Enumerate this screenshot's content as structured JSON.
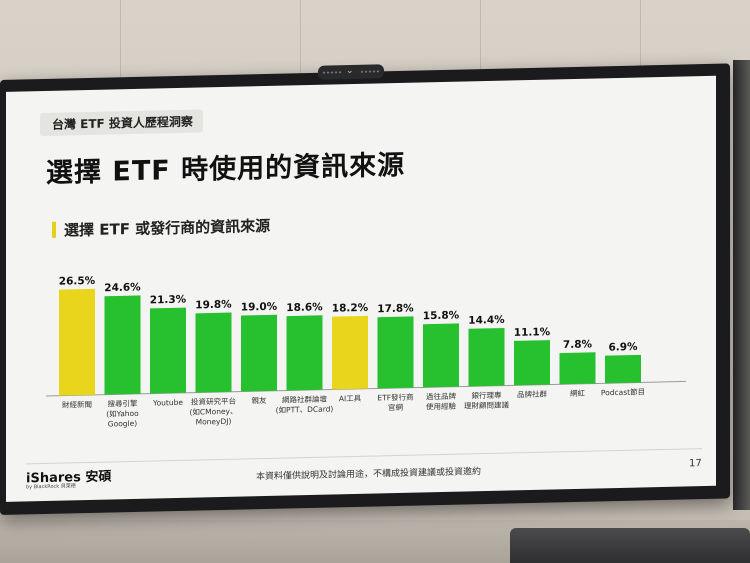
{
  "slide": {
    "topic_tag": "台灣 ETF 投資人歷程洞察",
    "title": "選擇 ETF 時使用的資訊來源",
    "subtitle": "選擇 ETF 或發行商的資訊來源",
    "footer_logo": "iShares 安碩",
    "footer_logo_sub": "by BlackRock 貝萊德",
    "footer_note": "本資料僅供說明及討論用途，不構成投資建議或投資邀約",
    "page_number": "17"
  },
  "colors": {
    "highlight": "#e8d51c",
    "standard": "#27c12f",
    "marker": "#e2d21a"
  },
  "chart_data": {
    "type": "bar",
    "categories": [
      "財經新聞",
      "搜尋引擎\n(如Yahoo\nGoogle)",
      "Youtube",
      "投資研究平台\n(如CMoney、\nMoneyDJ)",
      "親友",
      "網路社群論壇\n(如PTT、DCard)",
      "AI工具",
      "ETF發行商\n官網",
      "過往品牌\n使用經驗",
      "銀行理專\n理財顧問建議",
      "品牌社群",
      "網紅",
      "Podcast節目"
    ],
    "values": [
      26.5,
      24.6,
      21.3,
      19.8,
      19.0,
      18.6,
      18.2,
      17.8,
      15.8,
      14.4,
      11.1,
      7.8,
      6.9
    ],
    "value_labels": [
      "26.5%",
      "24.6%",
      "21.3%",
      "19.8%",
      "19.0%",
      "18.6%",
      "18.2%",
      "17.8%",
      "15.8%",
      "14.4%",
      "11.1%",
      "7.8%",
      "6.9%"
    ],
    "highlighted": [
      true,
      false,
      false,
      false,
      false,
      false,
      true,
      false,
      false,
      false,
      false,
      false,
      false
    ],
    "ylim": [
      0,
      30
    ]
  }
}
